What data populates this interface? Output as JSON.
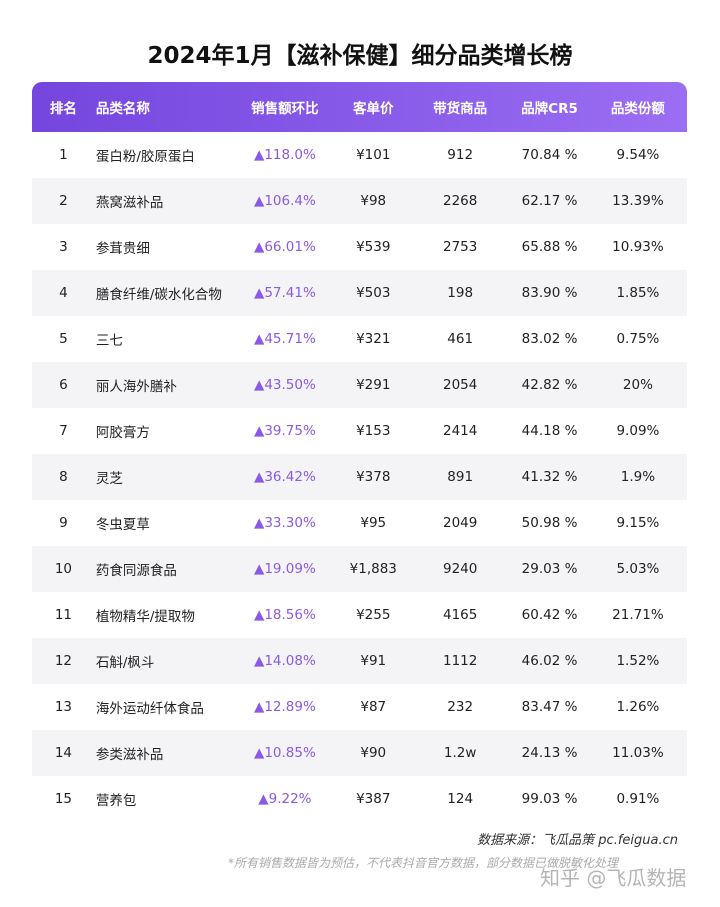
{
  "header": {
    "title": "2024年1月【滋补保健】细分品类增长榜"
  },
  "table": {
    "columns": [
      "排名",
      "品类名称",
      "销售额环比",
      "客单价",
      "带货商品",
      "品牌CR5",
      "品类份额"
    ],
    "rows": [
      [
        "1",
        "蛋白粉/胶原蛋白",
        "118.0%",
        "¥101",
        "912",
        "70.84 %",
        "9.54%"
      ],
      [
        "2",
        "燕窝滋补品",
        "106.4%",
        "¥98",
        "2268",
        "62.17 %",
        "13.39%"
      ],
      [
        "3",
        "参茸贵细",
        "66.01%",
        "¥539",
        "2753",
        "65.88 %",
        "10.93%"
      ],
      [
        "4",
        "膳食纤维/碳水化合物",
        "57.41%",
        "¥503",
        "198",
        "83.90 %",
        "1.85%"
      ],
      [
        "5",
        "三七",
        "45.71%",
        "¥321",
        "461",
        "83.02 %",
        "0.75%"
      ],
      [
        "6",
        "丽人海外膳补",
        "43.50%",
        "¥291",
        "2054",
        "42.82 %",
        "20%"
      ],
      [
        "7",
        "阿胶膏方",
        "39.75%",
        "¥153",
        "2414",
        "44.18 %",
        "9.09%"
      ],
      [
        "8",
        "灵芝",
        "36.42%",
        "¥378",
        "891",
        "41.32 %",
        "1.9%"
      ],
      [
        "9",
        "冬虫夏草",
        "33.30%",
        "¥95",
        "2049",
        "50.98 %",
        "9.15%"
      ],
      [
        "10",
        "药食同源食品",
        "19.09%",
        "¥1,883",
        "9240",
        "29.03 %",
        "5.03%"
      ],
      [
        "11",
        "植物精华/提取物",
        "18.56%",
        "¥255",
        "4165",
        "60.42 %",
        "21.71%"
      ],
      [
        "12",
        "石斛/枫斗",
        "14.08%",
        "¥91",
        "1112",
        "46.02 %",
        "1.52%"
      ],
      [
        "13",
        "海外运动纤体食品",
        "12.89%",
        "¥87",
        "232",
        "83.47 %",
        "1.26%"
      ],
      [
        "14",
        "参类滋补品",
        "10.85%",
        "¥90",
        "1.2w",
        "24.13 %",
        "11.03%"
      ],
      [
        "15",
        "营养包",
        "9.22%",
        "¥387",
        "124",
        "99.03 %",
        "0.91%"
      ]
    ]
  },
  "footer": {
    "source": "数据来源：飞瓜品策  pc.feigua.cn",
    "note": "*所有销售数据皆为预估，不代表抖音官方数据，部分数据已做脱敏化处理",
    "watermark": "知乎 @飞瓜数据"
  }
}
